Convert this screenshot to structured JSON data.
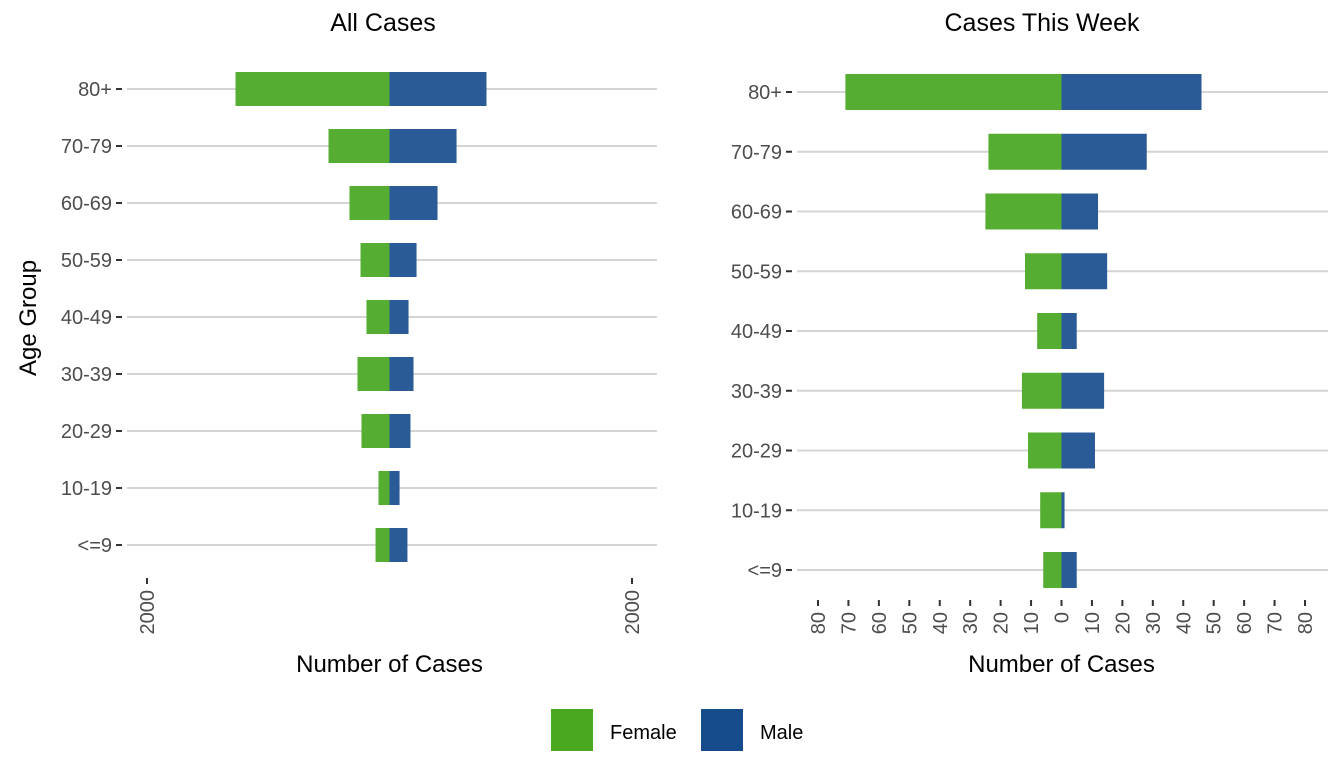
{
  "chart_data": [
    {
      "type": "bar",
      "orientation": "horizontal-pyramid",
      "title": "All Cases",
      "xlabel": "Number of Cases",
      "ylabel": "Age Group",
      "categories": [
        "<=9",
        "10-19",
        "20-29",
        "30-39",
        "40-49",
        "50-59",
        "60-69",
        "70-79",
        "80+"
      ],
      "series": [
        {
          "name": "Female",
          "values": [
            115,
            91,
            231,
            264,
            190,
            239,
            330,
            503,
            1270
          ]
        },
        {
          "name": "Male",
          "values": [
            148,
            83,
            173,
            198,
            157,
            223,
            396,
            553,
            800
          ]
        }
      ],
      "xlim": [
        -2000,
        2000
      ],
      "xticks": [
        -2000,
        2000
      ],
      "xtick_labels": [
        "2000",
        "2000"
      ],
      "grid": "horizontal-major"
    },
    {
      "type": "bar",
      "orientation": "horizontal-pyramid",
      "title": "Cases This Week",
      "xlabel": "Number of Cases",
      "ylabel": "",
      "categories": [
        "<=9",
        "10-19",
        "20-29",
        "30-39",
        "40-49",
        "50-59",
        "60-69",
        "70-79",
        "80+"
      ],
      "series": [
        {
          "name": "Female",
          "values": [
            6,
            7,
            11,
            13,
            8,
            12,
            25,
            24,
            71
          ]
        },
        {
          "name": "Male",
          "values": [
            5,
            1,
            11,
            14,
            5,
            15,
            12,
            28,
            46
          ]
        }
      ],
      "xlim": [
        -80,
        80
      ],
      "xticks": [
        -80,
        -70,
        -60,
        -50,
        -40,
        -30,
        -20,
        -10,
        0,
        10,
        20,
        30,
        40,
        50,
        60,
        70,
        80
      ],
      "xtick_labels": [
        "80",
        "70",
        "60",
        "50",
        "40",
        "30",
        "20",
        "10",
        "0",
        "10",
        "20",
        "30",
        "40",
        "50",
        "60",
        "70",
        "80"
      ],
      "grid": "horizontal-major"
    }
  ],
  "legend": {
    "placement": "bottom",
    "items": [
      {
        "label": "Female",
        "color": "#4aa81e"
      },
      {
        "label": "Male",
        "color": "#174c8c"
      }
    ]
  },
  "colors": {
    "female_bar": "#55ad31",
    "male_bar": "#2a5b97"
  }
}
